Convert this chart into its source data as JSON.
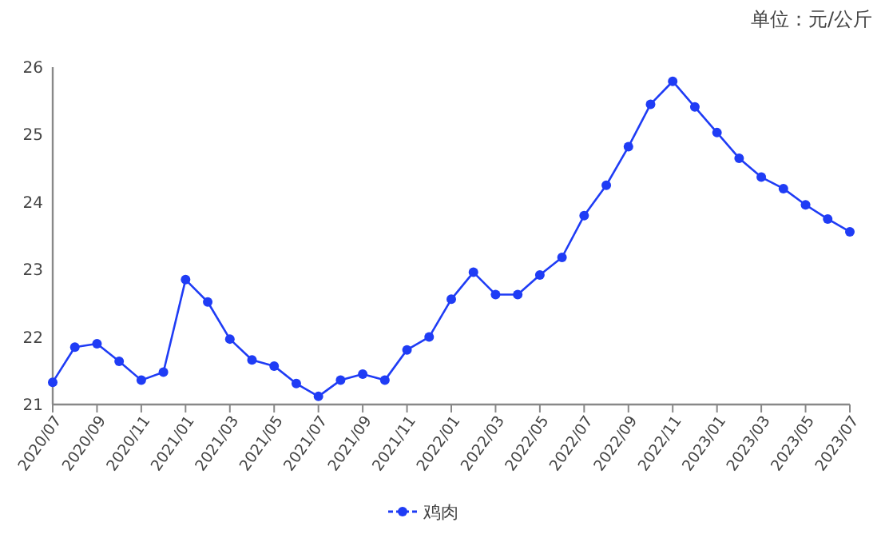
{
  "chart_data": {
    "type": "line",
    "annotations": [
      "单位：元/公斤"
    ],
    "categories": [
      "2020/07",
      null,
      "2020/09",
      null,
      "2020/11",
      null,
      "2021/01",
      null,
      "2021/03",
      null,
      "2021/05",
      null,
      "2021/07",
      null,
      "2021/09",
      null,
      "2021/11",
      null,
      "2022/01",
      null,
      "2022/03",
      null,
      "2022/05",
      null,
      "2022/07",
      null,
      "2022/09",
      null,
      "2022/11",
      null,
      "2023/01",
      null,
      "2023/03",
      null,
      "2023/05",
      null,
      "2023/07"
    ],
    "series": [
      {
        "name": "鸡肉",
        "color": "#1f3cf5",
        "values": [
          21.33,
          21.85,
          21.9,
          21.64,
          21.36,
          21.48,
          22.85,
          22.52,
          21.97,
          21.66,
          21.57,
          21.31,
          21.12,
          21.36,
          21.45,
          21.36,
          21.81,
          22.0,
          22.56,
          22.96,
          22.63,
          22.63,
          22.92,
          23.18,
          23.8,
          24.25,
          24.82,
          25.45,
          25.79,
          25.41,
          25.03,
          24.65,
          24.37,
          24.2,
          23.96,
          23.75,
          23.56
        ]
      }
    ],
    "ylim": [
      21,
      26
    ],
    "yticks": [
      21,
      22,
      23,
      24,
      25,
      26
    ],
    "legend": "bottom",
    "marker": "circle",
    "line_style": "solid"
  }
}
